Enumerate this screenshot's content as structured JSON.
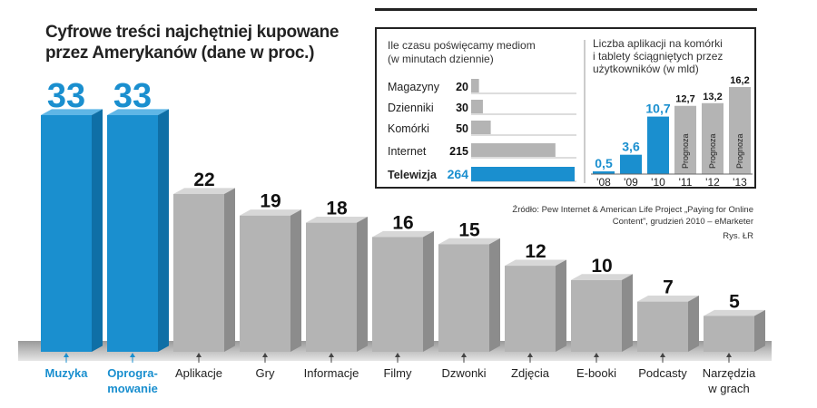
{
  "title": "Cyfrowe treści najchętniej kupowane przez Amerykanów (dane w proc.)",
  "source": "Źródło: Pew Internet & American Life Project „Paying for Online Content”, grudzień 2010 – eMarketer",
  "credit": "Rys. ŁR",
  "colors": {
    "highlight": "#1a8fcf",
    "gray": "#b4b4b4",
    "label_highlight": "#1a8fcf"
  },
  "chart_data": [
    {
      "type": "bar",
      "title": "Cyfrowe treści najchętniej kupowane przez Amerykanów (dane w proc.)",
      "categories": [
        "Muzyka",
        "Oprogra-\nmowanie",
        "Aplikacje",
        "Gry",
        "Informacje",
        "Filmy",
        "Dzwonki",
        "Zdjęcia",
        "E-booki",
        "Podcasty",
        "Narzędzia\nw grach"
      ],
      "values": [
        33,
        33,
        22,
        19,
        18,
        16,
        15,
        12,
        10,
        7,
        5
      ],
      "highlighted": [
        true,
        true,
        false,
        false,
        false,
        false,
        false,
        false,
        false,
        false,
        false
      ],
      "ylim": [
        0,
        33
      ]
    },
    {
      "type": "bar",
      "orientation": "horizontal",
      "title": "Ile czasu poświęcamy mediom (w minutach dziennie)",
      "categories": [
        "Magazyny",
        "Dzienniki",
        "Komórki",
        "Internet",
        "Telewizja"
      ],
      "values": [
        20,
        30,
        50,
        215,
        264
      ],
      "highlighted": [
        false,
        false,
        false,
        false,
        true
      ]
    },
    {
      "type": "bar",
      "title": "Liczba aplikacji na komórki i tablety ściągniętych przez użytkowników (w mld)",
      "categories": [
        "'08",
        "'09",
        "'10",
        "'11",
        "'12",
        "'13"
      ],
      "values": [
        0.5,
        3.6,
        10.7,
        12.7,
        13.2,
        16.2
      ],
      "value_labels": [
        "0,5",
        "3,6",
        "10,7",
        "12,7",
        "13,2",
        "16,2"
      ],
      "forecast": [
        false,
        false,
        false,
        true,
        true,
        true
      ],
      "forecast_label": "Prognoza"
    }
  ]
}
